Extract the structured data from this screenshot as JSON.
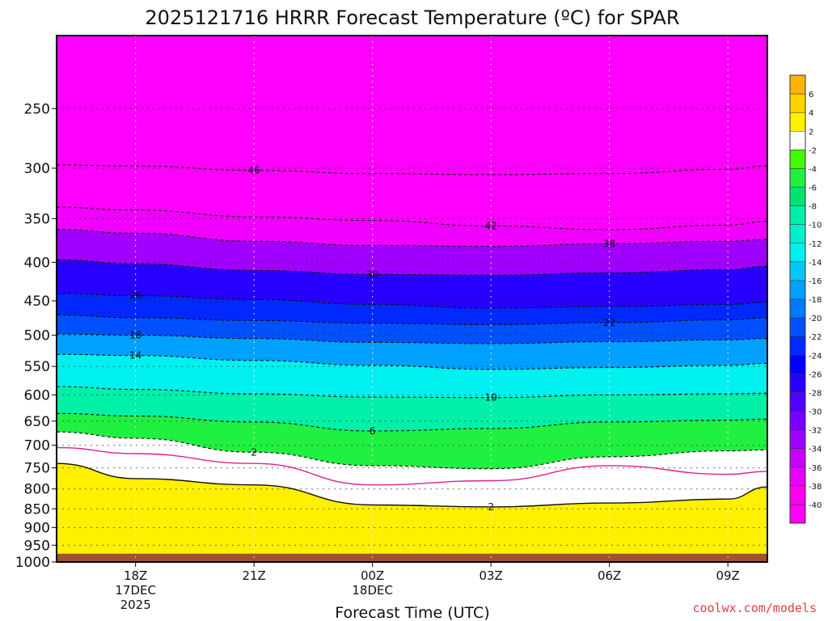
{
  "chart_data": {
    "type": "heatmap",
    "title": "2025121716 HRRR Forecast Temperature (ºC) for SPAR",
    "xlabel": "Forecast Time (UTC)",
    "ylabel": "",
    "y_scale": "log (pressure, hPa, inverted)",
    "ylim": [
      1000,
      200
    ],
    "xlim": [
      "2025-12-17T16Z",
      "2025-12-18T10Z"
    ],
    "y_ticks": [
      250,
      300,
      350,
      400,
      450,
      500,
      550,
      600,
      650,
      700,
      750,
      800,
      850,
      900,
      950,
      1000
    ],
    "x_ticks": [
      {
        "time": "2025-12-17T18Z",
        "lines": [
          "18Z",
          "17DEC",
          "2025"
        ]
      },
      {
        "time": "2025-12-17T21Z",
        "lines": [
          "21Z"
        ]
      },
      {
        "time": "2025-12-18T00Z",
        "lines": [
          "00Z",
          "18DEC"
        ]
      },
      {
        "time": "2025-12-18T03Z",
        "lines": [
          "03Z"
        ]
      },
      {
        "time": "2025-12-18T06Z",
        "lines": [
          "06Z"
        ]
      },
      {
        "time": "2025-12-18T09Z",
        "lines": [
          "09Z"
        ]
      }
    ],
    "grid": true,
    "legend": "colorbar right",
    "colorbar": {
      "labels": [
        "6",
        "4",
        "2",
        "-2",
        "-4",
        "-6",
        "-8",
        "-10",
        "-12",
        "-14",
        "-16",
        "-18",
        "-20",
        "-22",
        "-24",
        "-26",
        "-28",
        "-30",
        "-32",
        "-34",
        "-36",
        "-38",
        "-40"
      ],
      "colors": [
        "#ffb400",
        "#ffd200",
        "#fff000",
        "#ffffff",
        "#40ff00",
        "#20f040",
        "#00e470",
        "#00f0a8",
        "#00f0d0",
        "#00f0f0",
        "#00c8f8",
        "#00a0ff",
        "#0078ff",
        "#0050ff",
        "#0028ff",
        "#0000ff",
        "#2800ff",
        "#5000ff",
        "#7800ff",
        "#a000ff",
        "#c800ff",
        "#e600ff",
        "#ff00f0",
        "#ff00ff"
      ]
    },
    "contours": [
      {
        "value": -46,
        "times": [
          "16Z",
          "18Z",
          "21Z",
          "00Z",
          "03Z",
          "06Z",
          "09Z",
          "10Z"
        ],
        "pressure_hpa": [
          297,
          298,
          302,
          305,
          306,
          305,
          301,
          298
        ],
        "label": "46"
      },
      {
        "value": -42,
        "times": [
          "16Z",
          "18Z",
          "21Z",
          "00Z",
          "03Z",
          "06Z",
          "09Z",
          "10Z"
        ],
        "pressure_hpa": [
          338,
          341,
          348,
          352,
          358,
          362,
          357,
          353
        ],
        "label": "42"
      },
      {
        "value": -38,
        "times": [
          "16Z",
          "18Z",
          "21Z",
          "00Z",
          "03Z",
          "06Z",
          "09Z",
          "10Z"
        ],
        "pressure_hpa": [
          362,
          366,
          375,
          380,
          381,
          378,
          375,
          373
        ],
        "label": "38"
      },
      {
        "value": -30,
        "times": [
          "16Z",
          "18Z",
          "21Z",
          "00Z",
          "03Z",
          "06Z",
          "09Z",
          "10Z"
        ],
        "pressure_hpa": [
          397,
          402,
          410,
          415,
          416,
          413,
          409,
          405
        ],
        "label": "30"
      },
      {
        "value": -26,
        "times": [
          "16Z",
          "18Z",
          "21Z",
          "00Z",
          "03Z",
          "06Z",
          "09Z",
          "10Z"
        ],
        "pressure_hpa": [
          440,
          443,
          448,
          455,
          460,
          458,
          455,
          452
        ],
        "label": "26"
      },
      {
        "value": -22,
        "times": [
          "16Z",
          "18Z",
          "21Z",
          "00Z",
          "03Z",
          "06Z",
          "09Z",
          "10Z"
        ],
        "pressure_hpa": [
          470,
          474,
          478,
          482,
          484,
          481,
          477,
          474
        ],
        "label": "22"
      },
      {
        "value": -18,
        "times": [
          "16Z",
          "18Z",
          "21Z",
          "00Z",
          "03Z",
          "06Z",
          "09Z",
          "10Z"
        ],
        "pressure_hpa": [
          498,
          500,
          505,
          511,
          513,
          510,
          507,
          505
        ],
        "label": "18"
      },
      {
        "value": -14,
        "times": [
          "16Z",
          "18Z",
          "21Z",
          "00Z",
          "03Z",
          "06Z",
          "09Z",
          "10Z"
        ],
        "pressure_hpa": [
          530,
          532,
          540,
          548,
          555,
          552,
          548,
          545
        ],
        "label": "14"
      },
      {
        "value": -10,
        "times": [
          "16Z",
          "18Z",
          "21Z",
          "00Z",
          "03Z",
          "06Z",
          "09Z",
          "10Z"
        ],
        "pressure_hpa": [
          585,
          590,
          598,
          604,
          605,
          600,
          598,
          597
        ],
        "label": "10"
      },
      {
        "value": -6,
        "times": [
          "16Z",
          "18Z",
          "21Z",
          "00Z",
          "03Z",
          "06Z",
          "09Z",
          "10Z"
        ],
        "pressure_hpa": [
          635,
          640,
          652,
          670,
          665,
          652,
          648,
          646
        ],
        "label": "6"
      },
      {
        "value": -2,
        "times": [
          "16Z",
          "18Z",
          "21Z",
          "00Z",
          "03Z",
          "06Z",
          "09Z",
          "10Z"
        ],
        "pressure_hpa": [
          672,
          685,
          715,
          745,
          752,
          725,
          712,
          710
        ],
        "label": "2"
      },
      {
        "value": 0,
        "times": [
          "16Z",
          "18Z",
          "21Z",
          "00Z",
          "03Z",
          "06Z",
          "09Z",
          "10Z"
        ],
        "pressure_hpa": [
          705,
          718,
          740,
          790,
          780,
          745,
          765,
          758
        ],
        "label": ""
      },
      {
        "value": 2,
        "times": [
          "16Z",
          "18Z",
          "21Z",
          "00Z",
          "03Z",
          "06Z",
          "09Z",
          "10Z"
        ],
        "pressure_hpa": [
          740,
          775,
          790,
          840,
          845,
          835,
          825,
          795
        ],
        "label": "2"
      }
    ]
  }
}
